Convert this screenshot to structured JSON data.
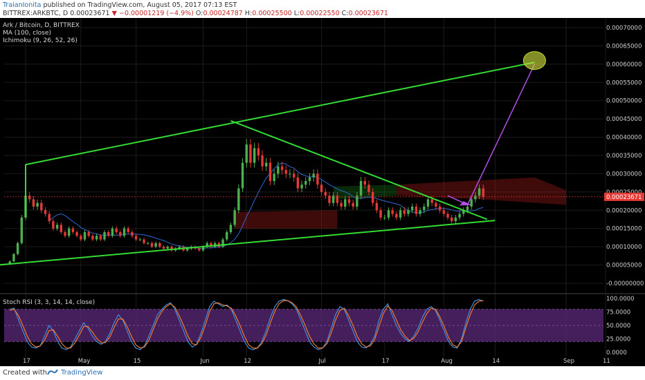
{
  "header": {
    "author": "TraianIonita",
    "published_text": "published on TradingView.com, August 05, 2017 07:13 EST",
    "symbol": "BITTREX:ARKBTC, D",
    "last_price": "0.00023671",
    "change_arrow": "▼",
    "change": "−0.00001219 (−4.9%)",
    "open_label": "O:",
    "open": "0.00024787",
    "high_label": "H:",
    "high": "0.00025500",
    "low_label": "L:",
    "low": "0.00022550",
    "close_label": "C:",
    "close": "0.00023671"
  },
  "legend": {
    "title": "Ark / Bitcoin, D, BITTREX",
    "ma": "MA (100, close)",
    "ichimoku": "Ichimoku (9, 26, 52, 26)",
    "stoch": "Stoch RSI (3, 3, 14, 14, close)"
  },
  "price_badge": "0.00023671",
  "footer": {
    "created_with": "Created with",
    "brand": "TradingView"
  },
  "colors": {
    "up": "#4caf50",
    "down": "#e53935",
    "trendline": "#33dd33",
    "projection": "#b44fe8",
    "target": "#c8d83c",
    "stoch_k": "#3f8fe0",
    "stoch_d": "#f07a2a",
    "stoch_band": "#5b2a7a"
  },
  "chart_data": [
    {
      "type": "candlestick",
      "title": "Ark / Bitcoin, D, BITTREX",
      "y_ticks": [
        "0.00070000",
        "0.00065000",
        "0.00060000",
        "0.00055000",
        "0.00050000",
        "0.00045000",
        "0.00040000",
        "0.00035000",
        "0.00030000",
        "0.00025000",
        "0.00020000",
        "0.00015000",
        "0.00010000",
        "0.00005000",
        "-0.00000000"
      ],
      "x_ticks": [
        "17",
        "May",
        "15",
        "Jun",
        "12",
        "Jul",
        "17",
        "Aug",
        "14",
        "Sep",
        "11"
      ],
      "ylim": [
        -1e-05,
        0.00072
      ],
      "x_start": "2017-04-13",
      "close_series": [
        6e-05,
        8e-05,
        0.00011,
        0.00018,
        0.00024,
        0.00023,
        0.00021,
        0.00022,
        0.0002,
        0.00019,
        0.00017,
        0.00015,
        0.00016,
        0.00014,
        0.00013,
        0.00015,
        0.00014,
        0.00013,
        0.00012,
        0.00014,
        0.00013,
        0.00012,
        0.00013,
        0.00012,
        0.00014,
        0.00013,
        0.00015,
        0.00014,
        0.00013,
        0.00015,
        0.00014,
        0.00013,
        0.00012,
        0.00012,
        0.00011,
        0.00011,
        0.0001,
        0.00011,
        0.0001,
        9.5e-05,
        0.0001,
        9e-05,
        9.5e-05,
        0.0001,
        9e-05,
        9.5e-05,
        0.0001,
        9.5e-05,
        9e-05,
        0.0001,
        0.00011,
        0.0001,
        0.00011,
        0.0001,
        0.00012,
        0.00014,
        0.00016,
        0.0002,
        0.00026,
        0.00033,
        0.00038,
        0.00033,
        0.00037,
        0.00035,
        0.00032,
        0.00033,
        0.00028,
        0.0003,
        0.00032,
        0.00031,
        0.0003,
        0.0003,
        0.00029,
        0.00026,
        0.00027,
        0.00028,
        0.00029,
        0.0003,
        0.00027,
        0.00025,
        0.00024,
        0.00022,
        0.00024,
        0.00022,
        0.00021,
        0.00023,
        0.00022,
        0.00021,
        0.00024,
        0.00028,
        0.00027,
        0.00025,
        0.00022,
        0.0002,
        0.00018,
        0.00018,
        0.0002,
        0.00019,
        0.00018,
        0.0002,
        0.00019,
        0.0002,
        0.00021,
        0.00019,
        0.0002,
        0.00021,
        0.00023,
        0.00022,
        0.00021,
        0.0002,
        0.00019,
        0.00018,
        0.00017,
        0.00018,
        0.00019,
        0.0002,
        0.00021,
        0.00023,
        0.00024,
        0.00026,
        0.000237
      ],
      "annotations": {
        "upper_channel_line": [
          [
            "2017-04-17",
            0.000325
          ],
          [
            "2017-08-24",
            0.000605
          ]
        ],
        "lower_channel_line": [
          [
            "2017-04-10",
            5e-05
          ],
          [
            "2017-08-14",
            0.000172
          ]
        ],
        "wedge_upper_line": [
          [
            "2017-06-08",
            0.000445
          ],
          [
            "2017-08-12",
            0.000175
          ]
        ],
        "projection_arrow": [
          [
            "2017-08-07",
            0.000215
          ],
          [
            "2017-08-24",
            0.0006
          ]
        ],
        "target_ellipse_center": [
          "2017-08-24",
          0.00061
        ]
      },
      "last_price": 0.00023671
    },
    {
      "type": "line",
      "title": "Stoch RSI (3, 3, 14, 14, close)",
      "y_ticks": [
        "100.0000",
        "75.0000",
        "50.0000",
        "25.0000",
        "0.0000"
      ],
      "ylim": [
        0,
        100
      ],
      "bands": [
        20,
        80
      ],
      "series": [
        {
          "name": "K",
          "values": [
            80,
            82,
            60,
            40,
            20,
            10,
            8,
            12,
            30,
            50,
            40,
            20,
            8,
            5,
            10,
            25,
            40,
            55,
            45,
            30,
            20,
            15,
            20,
            35,
            55,
            70,
            60,
            40,
            20,
            8,
            5,
            12,
            30,
            50,
            70,
            80,
            88,
            92,
            80,
            60,
            40,
            20,
            10,
            15,
            35,
            60,
            85,
            95,
            90,
            85,
            88,
            80,
            60,
            40,
            20,
            8,
            5,
            8,
            20,
            40,
            65,
            85,
            95,
            98,
            96,
            90,
            80,
            60,
            40,
            20,
            10,
            5,
            8,
            20,
            45,
            70,
            85,
            80,
            60,
            40,
            20,
            10,
            8,
            15,
            30,
            60,
            80,
            90,
            70,
            50,
            35,
            25,
            20,
            30,
            45,
            65,
            80,
            85,
            78,
            60,
            40,
            20,
            10,
            8,
            25,
            55,
            80,
            95,
            98,
            95
          ]
        },
        {
          "name": "D",
          "values": [
            78,
            80,
            68,
            50,
            30,
            16,
            10,
            12,
            22,
            40,
            42,
            30,
            16,
            8,
            8,
            18,
            32,
            48,
            48,
            38,
            26,
            18,
            18,
            28,
            46,
            62,
            62,
            48,
            30,
            14,
            8,
            10,
            22,
            42,
            62,
            76,
            85,
            90,
            84,
            68,
            50,
            30,
            16,
            14,
            28,
            50,
            76,
            90,
            92,
            88,
            86,
            82,
            68,
            50,
            30,
            14,
            8,
            8,
            16,
            32,
            55,
            76,
            90,
            96,
            96,
            92,
            84,
            68,
            50,
            30,
            16,
            8,
            8,
            16,
            36,
            60,
            78,
            82,
            68,
            50,
            30,
            16,
            10,
            12,
            24,
            48,
            72,
            86,
            78,
            60,
            42,
            30,
            22,
            26,
            38,
            56,
            72,
            82,
            80,
            66,
            48,
            28,
            14,
            10,
            20,
            46,
            70,
            88,
            95,
            96
          ]
        }
      ]
    }
  ]
}
